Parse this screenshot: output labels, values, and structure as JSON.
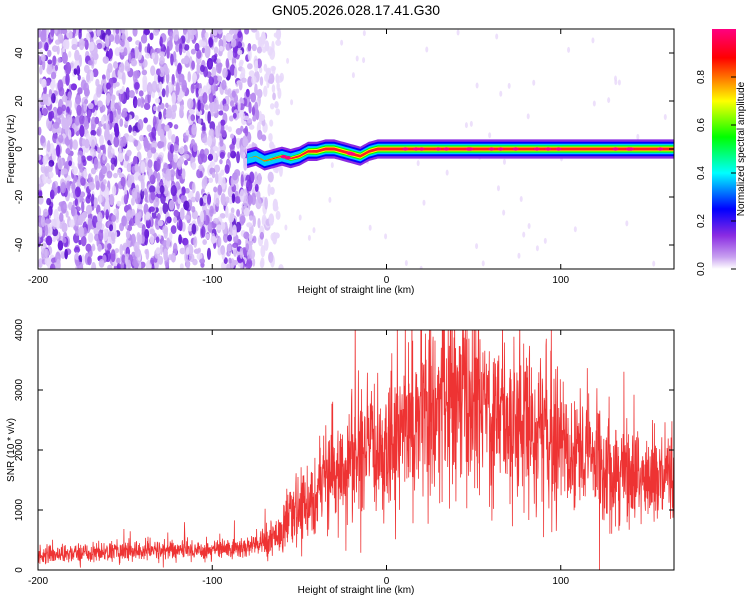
{
  "title": "GN05.2026.028.17.41.G30",
  "chart_data": [
    {
      "type": "heatmap",
      "xlabel": "Height of straight line (km)",
      "ylabel": "Frequency (Hz)",
      "xlim": [
        -200,
        165
      ],
      "ylim": [
        -50,
        50
      ],
      "xticks": [
        -200,
        -100,
        0,
        100
      ],
      "yticks": [
        -40,
        -20,
        0,
        20,
        40
      ],
      "colorbar": {
        "label": "Normalized spectral amplitude",
        "range": [
          0,
          1
        ],
        "ticks": [
          "0.0",
          "0.2",
          "0.4",
          "0.6",
          "0.8"
        ],
        "colors": [
          "#ffffff",
          "#8a2be2",
          "#0000ff",
          "#00ffff",
          "#00ff00",
          "#ffff00",
          "#ff0000",
          "#ff00aa"
        ]
      },
      "trace": {
        "description_points_x": [
          -80,
          -75,
          -70,
          -65,
          -60,
          -55,
          -50,
          -45,
          -40,
          -35,
          -30,
          -25,
          -20,
          -15,
          -10,
          -5,
          0,
          10,
          20,
          165
        ],
        "description_points_y": [
          -4,
          -3,
          -5,
          -4,
          -3,
          -4,
          -3,
          -1,
          -1,
          0,
          0,
          -1,
          -2,
          -3,
          -1,
          0,
          0,
          0,
          0,
          0
        ]
      },
      "noise_region_x": [
        -200,
        -60
      ],
      "grid": false
    },
    {
      "type": "line",
      "xlabel": "Height of straight line (km)",
      "ylabel": "SNR (10 * v/v)",
      "xlim": [
        -200,
        165
      ],
      "ylim": [
        0,
        4000
      ],
      "xticks": [
        -200,
        -100,
        0,
        100
      ],
      "yticks": [
        0,
        1000,
        2000,
        3000,
        4000
      ],
      "color": "#ee3333",
      "envelope_x": [
        -200,
        -180,
        -160,
        -140,
        -120,
        -100,
        -90,
        -80,
        -70,
        -60,
        -50,
        -40,
        -30,
        -20,
        -10,
        0,
        10,
        20,
        30,
        40,
        50,
        60,
        70,
        80,
        90,
        100,
        110,
        120,
        130,
        140,
        150,
        165
      ],
      "envelope_y": [
        250,
        280,
        300,
        320,
        330,
        340,
        350,
        380,
        450,
        700,
        1000,
        1300,
        1600,
        1800,
        1950,
        2100,
        2400,
        2600,
        2750,
        2850,
        2800,
        2700,
        2600,
        2450,
        2300,
        2150,
        2000,
        1850,
        1700,
        1600,
        1500,
        1450
      ],
      "grid": false
    }
  ]
}
